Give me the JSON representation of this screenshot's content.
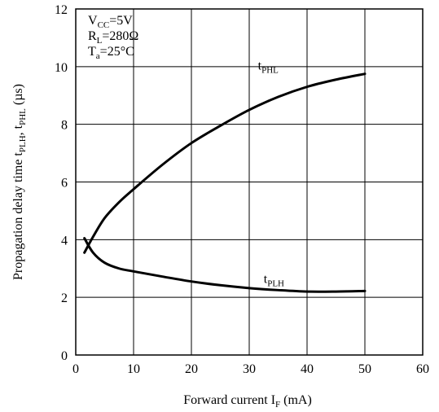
{
  "chart_data": {
    "type": "line",
    "xlabel": {
      "main": "Forward current I",
      "sub": "F",
      "unit": " (mA)"
    },
    "ylabel": {
      "p1": "Propagation delay time t",
      "s1": "PLH",
      "p2": ", t",
      "s2": "PHL",
      "p3": " (µs)"
    },
    "xlim": [
      0,
      60
    ],
    "ylim": [
      0,
      12
    ],
    "xticks": [
      "0",
      "10",
      "20",
      "30",
      "40",
      "50",
      "60"
    ],
    "yticks": [
      "0",
      "2",
      "4",
      "6",
      "8",
      "10",
      "12"
    ],
    "grid": true,
    "conditions": [
      {
        "main": "V",
        "sub": "CC",
        "rest": "=5V"
      },
      {
        "main": "R",
        "sub": "L",
        "rest": "=280Ω"
      },
      {
        "main": "T",
        "sub": "a",
        "rest": "=25°C"
      }
    ],
    "series": [
      {
        "name": "tPHL",
        "label_main": "t",
        "label_sub": "PHL",
        "x": [
          1.5,
          3,
          5,
          7.5,
          10,
          15,
          20,
          25,
          30,
          35,
          40,
          45,
          50
        ],
        "y": [
          3.55,
          4.1,
          4.75,
          5.3,
          5.75,
          6.6,
          7.35,
          7.95,
          8.5,
          8.95,
          9.3,
          9.55,
          9.75
        ]
      },
      {
        "name": "tPLH",
        "label_main": "t",
        "label_sub": "PLH",
        "x": [
          1.5,
          3,
          5,
          7.5,
          10,
          15,
          20,
          25,
          30,
          35,
          40,
          45,
          50
        ],
        "y": [
          4.05,
          3.55,
          3.2,
          3.0,
          2.9,
          2.72,
          2.55,
          2.42,
          2.32,
          2.25,
          2.2,
          2.2,
          2.22
        ]
      }
    ]
  }
}
